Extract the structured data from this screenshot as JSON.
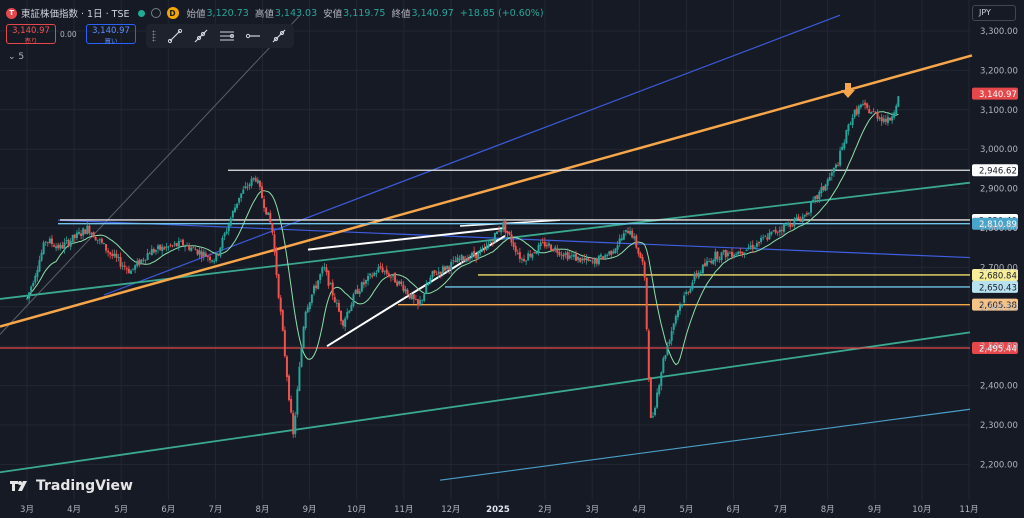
{
  "symbol": {
    "title": "東証株価指数 · 1日 · TSE",
    "logo_letter": "T",
    "exchange_badge": "D",
    "ohlc": [
      {
        "label": "始値",
        "value": "3,120.73"
      },
      {
        "label": "高値",
        "value": "3,143.03"
      },
      {
        "label": "安値",
        "value": "3,119.75"
      },
      {
        "label": "終値",
        "value": "3,140.97"
      }
    ],
    "change": "+18.85 (+0.60%)"
  },
  "trade": {
    "sell_price": "3,140.97",
    "sell_label": "売り",
    "spread": "0.00",
    "buy_price": "3,140.97",
    "buy_label": "買い"
  },
  "indicators_toggle": "5",
  "currency": "JPY",
  "brand": "TradingView",
  "drawing_tools": [
    "trend-line-icon",
    "ray-icon",
    "parallel-channel-icon",
    "horizontal-ray-icon",
    "extended-line-icon"
  ],
  "colors": {
    "up": "#26a69a",
    "down": "#ef5350",
    "orange": "#f7a64a",
    "blue": "#3b5ad8",
    "teal": "#3aa890",
    "red": "#e5474b",
    "yellow": "#e0d050",
    "cyan": "#5ab0d0"
  },
  "chart_data": {
    "type": "candlestick",
    "x_ticks": [
      "3月",
      "4月",
      "5月",
      "6月",
      "7月",
      "8月",
      "9月",
      "10月",
      "11月",
      "12月",
      "2025",
      "2月",
      "3月",
      "4月",
      "5月",
      "6月",
      "7月",
      "8月",
      "9月",
      "10月",
      "11月"
    ],
    "y_ticks": [
      "3,300.00",
      "3,200.00",
      "3,100.00",
      "3,000.00",
      "2,900.00",
      "2,800.00",
      "2,700.00",
      "2,600.00",
      "2,500.00",
      "2,400.00",
      "2,300.00",
      "2,200.00"
    ],
    "ylim": [
      2160,
      3340
    ],
    "last_price": "3,140.97",
    "price_labels": [
      {
        "text": "3,140.97",
        "value": 3140.97,
        "style": "red"
      },
      {
        "text": "2,946.62",
        "value": 2946.62,
        "style": "white"
      },
      {
        "text": "2,820.40",
        "value": 2820.4,
        "style": "white"
      },
      {
        "text": "2,810.89",
        "value": 2810.89,
        "style": "cyan"
      },
      {
        "text": "2,680.84",
        "value": 2680.84,
        "style": "yellow"
      },
      {
        "text": "2,650.43",
        "value": 2650.43,
        "style": "cyanline"
      },
      {
        "text": "2,605.38",
        "value": 2605.38,
        "style": "orange"
      },
      {
        "text": "2,495.44",
        "value": 2495.44,
        "style": "red"
      }
    ],
    "anchors": [
      {
        "x": 0.0,
        "y": 2620
      },
      {
        "x": 0.4,
        "y": 2770
      },
      {
        "x": 0.7,
        "y": 2750
      },
      {
        "x": 1.3,
        "y": 2800
      },
      {
        "x": 1.8,
        "y": 2730
      },
      {
        "x": 2.2,
        "y": 2690
      },
      {
        "x": 2.6,
        "y": 2740
      },
      {
        "x": 3.3,
        "y": 2760
      },
      {
        "x": 4.0,
        "y": 2720
      },
      {
        "x": 4.5,
        "y": 2880
      },
      {
        "x": 4.85,
        "y": 2930
      },
      {
        "x": 5.2,
        "y": 2800
      },
      {
        "x": 5.5,
        "y": 2450
      },
      {
        "x": 5.65,
        "y": 2270
      },
      {
        "x": 5.9,
        "y": 2590
      },
      {
        "x": 6.3,
        "y": 2700
      },
      {
        "x": 6.7,
        "y": 2560
      },
      {
        "x": 7.0,
        "y": 2640
      },
      {
        "x": 7.5,
        "y": 2700
      },
      {
        "x": 8.0,
        "y": 2650
      },
      {
        "x": 8.3,
        "y": 2600
      },
      {
        "x": 8.6,
        "y": 2680
      },
      {
        "x": 9.2,
        "y": 2720
      },
      {
        "x": 9.7,
        "y": 2740
      },
      {
        "x": 10.1,
        "y": 2810
      },
      {
        "x": 10.5,
        "y": 2720
      },
      {
        "x": 11.0,
        "y": 2760
      },
      {
        "x": 11.5,
        "y": 2730
      },
      {
        "x": 12.0,
        "y": 2710
      },
      {
        "x": 12.4,
        "y": 2740
      },
      {
        "x": 12.8,
        "y": 2800
      },
      {
        "x": 13.1,
        "y": 2700
      },
      {
        "x": 13.25,
        "y": 2300
      },
      {
        "x": 13.5,
        "y": 2460
      },
      {
        "x": 13.8,
        "y": 2590
      },
      {
        "x": 14.2,
        "y": 2680
      },
      {
        "x": 14.6,
        "y": 2730
      },
      {
        "x": 15.1,
        "y": 2740
      },
      {
        "x": 15.5,
        "y": 2760
      },
      {
        "x": 16.0,
        "y": 2800
      },
      {
        "x": 16.5,
        "y": 2830
      },
      {
        "x": 16.9,
        "y": 2900
      },
      {
        "x": 17.2,
        "y": 2960
      },
      {
        "x": 17.5,
        "y": 3080
      },
      {
        "x": 17.7,
        "y": 3110
      },
      {
        "x": 18.0,
        "y": 3090
      },
      {
        "x": 18.3,
        "y": 3070
      },
      {
        "x": 18.5,
        "y": 3130
      }
    ]
  }
}
